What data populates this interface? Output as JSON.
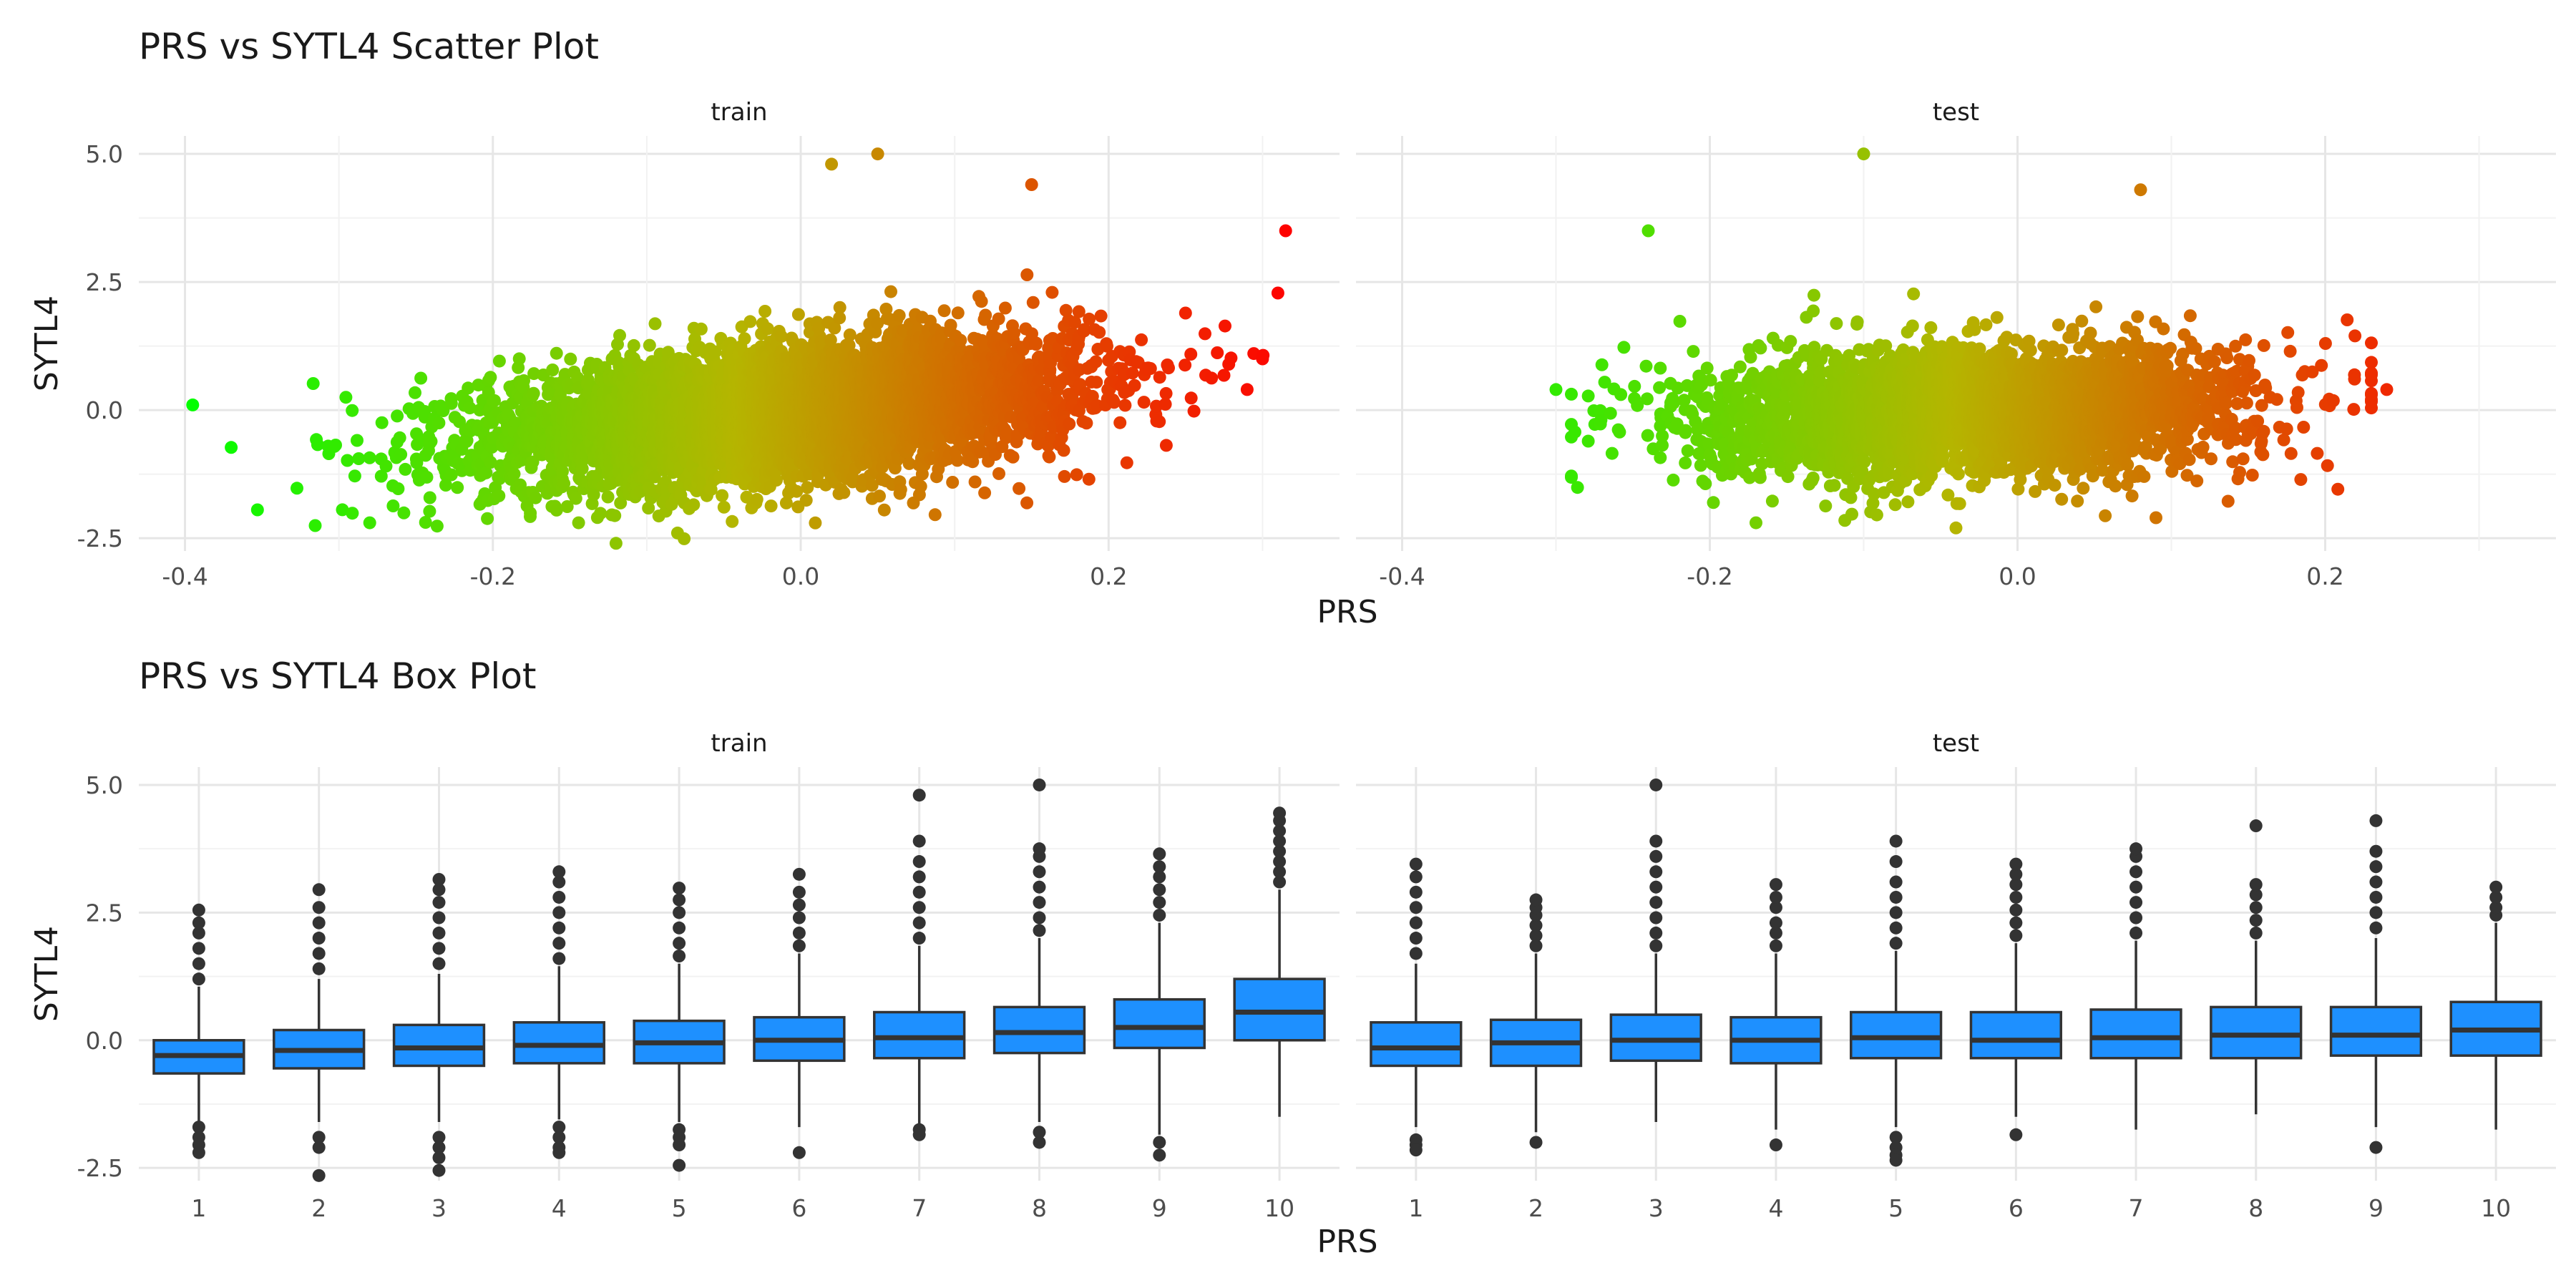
{
  "chart_data": [
    {
      "type": "scatter",
      "title": "PRS vs SYTL4 Scatter Plot",
      "xlabel": "PRS",
      "ylabel": "SYTL4",
      "facets": [
        "train",
        "test"
      ],
      "xlim": [
        -0.43,
        0.35
      ],
      "ylim": [
        -2.75,
        5.35
      ],
      "xticks": [
        "-0.4",
        "-0.2",
        "0.0",
        "0.2"
      ],
      "yticks": [
        "5.0",
        "2.5",
        "0.0",
        "-2.5"
      ],
      "grid": true,
      "color_scale": {
        "low": "#00ff00",
        "mid": "#b5b500",
        "high": "#ff0000",
        "variable": "PRS"
      },
      "panels": [
        {
          "name": "train",
          "prs_range": [
            -0.4,
            0.32
          ],
          "trend": {
            "intercept": 0.0,
            "slope": 2.8
          },
          "spread": 0.65,
          "outliers": [
            [
              -0.395,
              0.1
            ],
            [
              0.315,
              3.5
            ],
            [
              0.05,
              5.0
            ],
            [
              0.02,
              4.8
            ],
            [
              0.3,
              1.0
            ],
            [
              0.29,
              0.4
            ],
            [
              -0.12,
              -2.6
            ],
            [
              -0.28,
              -2.2
            ],
            [
              -0.08,
              -2.4
            ],
            [
              0.15,
              4.4
            ]
          ]
        },
        {
          "name": "test",
          "prs_range": [
            -0.32,
            0.24
          ],
          "trend": {
            "intercept": 0.0,
            "slope": 1.1
          },
          "spread": 0.62,
          "outliers": [
            [
              -0.1,
              5.0
            ],
            [
              -0.24,
              3.5
            ],
            [
              0.08,
              4.3
            ],
            [
              0.24,
              0.4
            ],
            [
              -0.3,
              0.4
            ],
            [
              -0.04,
              -2.3
            ],
            [
              0.09,
              -2.1
            ],
            [
              -0.17,
              -2.2
            ]
          ]
        }
      ]
    },
    {
      "type": "box",
      "title": "PRS vs SYTL4 Box Plot",
      "xlabel": "PRS",
      "ylabel": "SYTL4",
      "facets": [
        "train",
        "test"
      ],
      "ylim": [
        -2.75,
        5.35
      ],
      "yticks": [
        "5.0",
        "2.5",
        "0.0",
        "-2.5"
      ],
      "categories": [
        "1",
        "2",
        "3",
        "4",
        "5",
        "6",
        "7",
        "8",
        "9",
        "10"
      ],
      "fill": "#1e90ff",
      "panels": [
        {
          "name": "train",
          "boxes": [
            {
              "q1": -0.65,
              "median": -0.3,
              "q3": 0.0,
              "lo": -1.6,
              "hi": 1.05,
              "outliers_high": [
                1.2,
                1.5,
                1.8,
                2.1,
                2.3,
                2.55
              ],
              "outliers_low": [
                -1.7,
                -1.9,
                -2.05,
                -2.2
              ]
            },
            {
              "q1": -0.55,
              "median": -0.2,
              "q3": 0.2,
              "lo": -1.6,
              "hi": 1.2,
              "outliers_high": [
                1.4,
                1.7,
                2.0,
                2.3,
                2.6,
                2.95
              ],
              "outliers_low": [
                -1.9,
                -2.1,
                -2.65
              ]
            },
            {
              "q1": -0.5,
              "median": -0.15,
              "q3": 0.3,
              "lo": -1.6,
              "hi": 1.3,
              "outliers_high": [
                1.5,
                1.8,
                2.1,
                2.4,
                2.7,
                2.95,
                3.15
              ],
              "outliers_low": [
                -1.9,
                -2.1,
                -2.3,
                -2.55
              ]
            },
            {
              "q1": -0.45,
              "median": -0.1,
              "q3": 0.35,
              "lo": -1.55,
              "hi": 1.45,
              "outliers_high": [
                1.6,
                1.9,
                2.2,
                2.5,
                2.8,
                3.1,
                3.3
              ],
              "outliers_low": [
                -1.7,
                -1.9,
                -2.1,
                -2.2
              ]
            },
            {
              "q1": -0.45,
              "median": -0.05,
              "q3": 0.38,
              "lo": -1.6,
              "hi": 1.5,
              "outliers_high": [
                1.65,
                1.9,
                2.2,
                2.5,
                2.75,
                2.98
              ],
              "outliers_low": [
                -1.75,
                -1.9,
                -2.05,
                -2.45
              ]
            },
            {
              "q1": -0.4,
              "median": 0.0,
              "q3": 0.45,
              "lo": -1.7,
              "hi": 1.7,
              "outliers_high": [
                1.85,
                2.1,
                2.4,
                2.65,
                2.9,
                3.25
              ],
              "outliers_low": [
                -2.2
              ]
            },
            {
              "q1": -0.35,
              "median": 0.05,
              "q3": 0.55,
              "lo": -1.65,
              "hi": 1.85,
              "outliers_high": [
                2.0,
                2.3,
                2.6,
                2.9,
                3.2,
                3.5,
                3.9,
                4.8
              ],
              "outliers_low": [
                -1.75,
                -1.85
              ]
            },
            {
              "q1": -0.25,
              "median": 0.15,
              "q3": 0.65,
              "lo": -1.6,
              "hi": 2.0,
              "outliers_high": [
                2.15,
                2.4,
                2.7,
                3.0,
                3.3,
                3.6,
                3.75,
                5.0
              ],
              "outliers_low": [
                -1.8,
                -2.0
              ]
            },
            {
              "q1": -0.15,
              "median": 0.25,
              "q3": 0.8,
              "lo": -1.85,
              "hi": 2.3,
              "outliers_high": [
                2.45,
                2.7,
                2.95,
                3.2,
                3.4,
                3.65
              ],
              "outliers_low": [
                -2.0,
                -2.25
              ]
            },
            {
              "q1": 0.0,
              "median": 0.55,
              "q3": 1.2,
              "lo": -1.5,
              "hi": 2.95,
              "outliers_high": [
                3.1,
                3.3,
                3.5,
                3.7,
                3.9,
                4.1,
                4.3,
                4.45
              ],
              "outliers_low": []
            }
          ]
        },
        {
          "name": "test",
          "boxes": [
            {
              "q1": -0.5,
              "median": -0.15,
              "q3": 0.35,
              "lo": -1.7,
              "hi": 1.5,
              "outliers_high": [
                1.7,
                2.0,
                2.3,
                2.6,
                2.9,
                3.2,
                3.45
              ],
              "outliers_low": [
                -1.95,
                -2.05,
                -2.15
              ]
            },
            {
              "q1": -0.5,
              "median": -0.05,
              "q3": 0.4,
              "lo": -1.8,
              "hi": 1.7,
              "outliers_high": [
                1.85,
                2.05,
                2.25,
                2.45,
                2.6,
                2.75
              ],
              "outliers_low": [
                -2.0
              ]
            },
            {
              "q1": -0.4,
              "median": 0.0,
              "q3": 0.5,
              "lo": -1.6,
              "hi": 1.7,
              "outliers_high": [
                1.85,
                2.1,
                2.4,
                2.7,
                3.0,
                3.3,
                3.6,
                3.9,
                5.0
              ],
              "outliers_low": []
            },
            {
              "q1": -0.45,
              "median": 0.0,
              "q3": 0.45,
              "lo": -1.75,
              "hi": 1.7,
              "outliers_high": [
                1.85,
                2.1,
                2.3,
                2.6,
                2.8,
                3.05
              ],
              "outliers_low": [
                -2.05
              ]
            },
            {
              "q1": -0.35,
              "median": 0.05,
              "q3": 0.55,
              "lo": -1.7,
              "hi": 1.75,
              "outliers_high": [
                1.9,
                2.2,
                2.5,
                2.8,
                3.1,
                3.5,
                3.9
              ],
              "outliers_low": [
                -1.9,
                -2.1,
                -2.25,
                -2.35
              ]
            },
            {
              "q1": -0.35,
              "median": 0.0,
              "q3": 0.55,
              "lo": -1.5,
              "hi": 1.9,
              "outliers_high": [
                2.05,
                2.3,
                2.55,
                2.8,
                3.05,
                3.25,
                3.45
              ],
              "outliers_low": [
                -1.85
              ]
            },
            {
              "q1": -0.35,
              "median": 0.05,
              "q3": 0.6,
              "lo": -1.75,
              "hi": 1.95,
              "outliers_high": [
                2.1,
                2.4,
                2.7,
                3.0,
                3.3,
                3.6,
                3.75
              ],
              "outliers_low": []
            },
            {
              "q1": -0.35,
              "median": 0.1,
              "q3": 0.65,
              "lo": -1.45,
              "hi": 1.95,
              "outliers_high": [
                2.1,
                2.35,
                2.6,
                2.85,
                3.05,
                4.2
              ],
              "outliers_low": []
            },
            {
              "q1": -0.3,
              "median": 0.1,
              "q3": 0.65,
              "lo": -1.7,
              "hi": 2.0,
              "outliers_high": [
                2.2,
                2.5,
                2.8,
                3.1,
                3.4,
                3.7,
                4.3
              ],
              "outliers_low": [
                -2.1
              ]
            },
            {
              "q1": -0.3,
              "median": 0.2,
              "q3": 0.75,
              "lo": -1.75,
              "hi": 2.3,
              "outliers_high": [
                2.45,
                2.6,
                2.8,
                3.0
              ],
              "outliers_low": []
            }
          ]
        }
      ]
    }
  ]
}
